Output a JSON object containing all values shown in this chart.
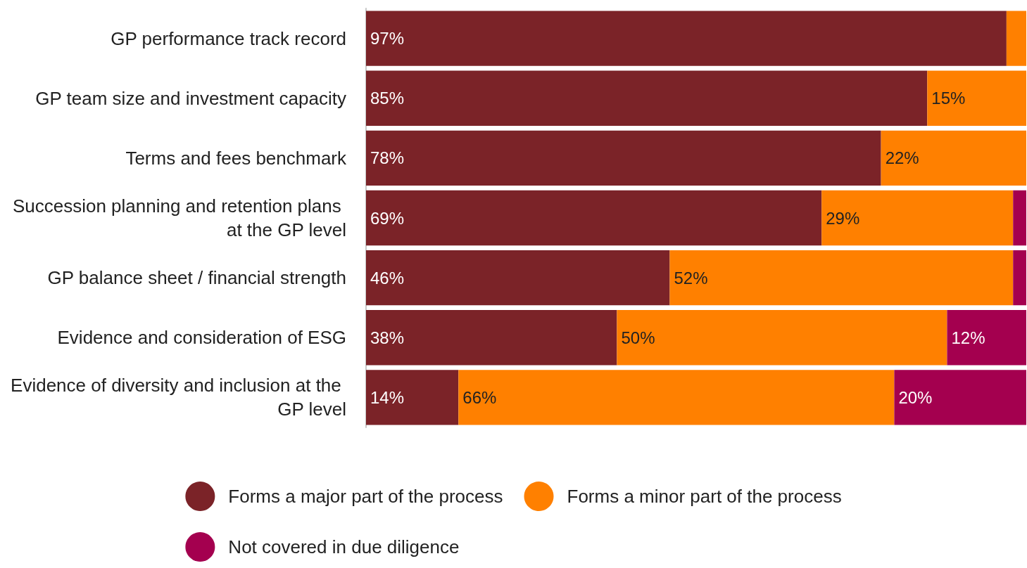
{
  "chart_data": {
    "type": "bar",
    "orientation": "horizontal",
    "stacked": true,
    "xlim": [
      0,
      100
    ],
    "tick_labels": "y",
    "legend": "bottom",
    "grid": false,
    "categories": [
      "GP performance track record",
      "GP team size and investment capacity",
      "Terms and fees benchmark",
      "Succession planning and retention plans at the GP level",
      "GP balance sheet / financial strength",
      "Evidence and consideration of ESG",
      "Evidence of diversity and inclusion at the GP level"
    ],
    "series": [
      {
        "name": "Forms a major part of the process",
        "color": "#7b2328",
        "values": [
          97,
          85,
          78,
          69,
          46,
          38,
          14
        ],
        "value_labels": [
          "97%",
          "85%",
          "78%",
          "69%",
          "46%",
          "38%",
          "14%"
        ]
      },
      {
        "name": "Forms a minor part of the process",
        "color": "#ff8000",
        "values": [
          3,
          15,
          22,
          29,
          52,
          50,
          66
        ],
        "value_labels": [
          null,
          "15%",
          "22%",
          "29%",
          "52%",
          "50%",
          "66%"
        ]
      },
      {
        "name": "Not covered in due diligence",
        "color": "#a4004f",
        "values": [
          null,
          null,
          null,
          2,
          2,
          12,
          20
        ],
        "value_labels": [
          null,
          null,
          null,
          null,
          null,
          "12%",
          "20%"
        ]
      }
    ]
  }
}
